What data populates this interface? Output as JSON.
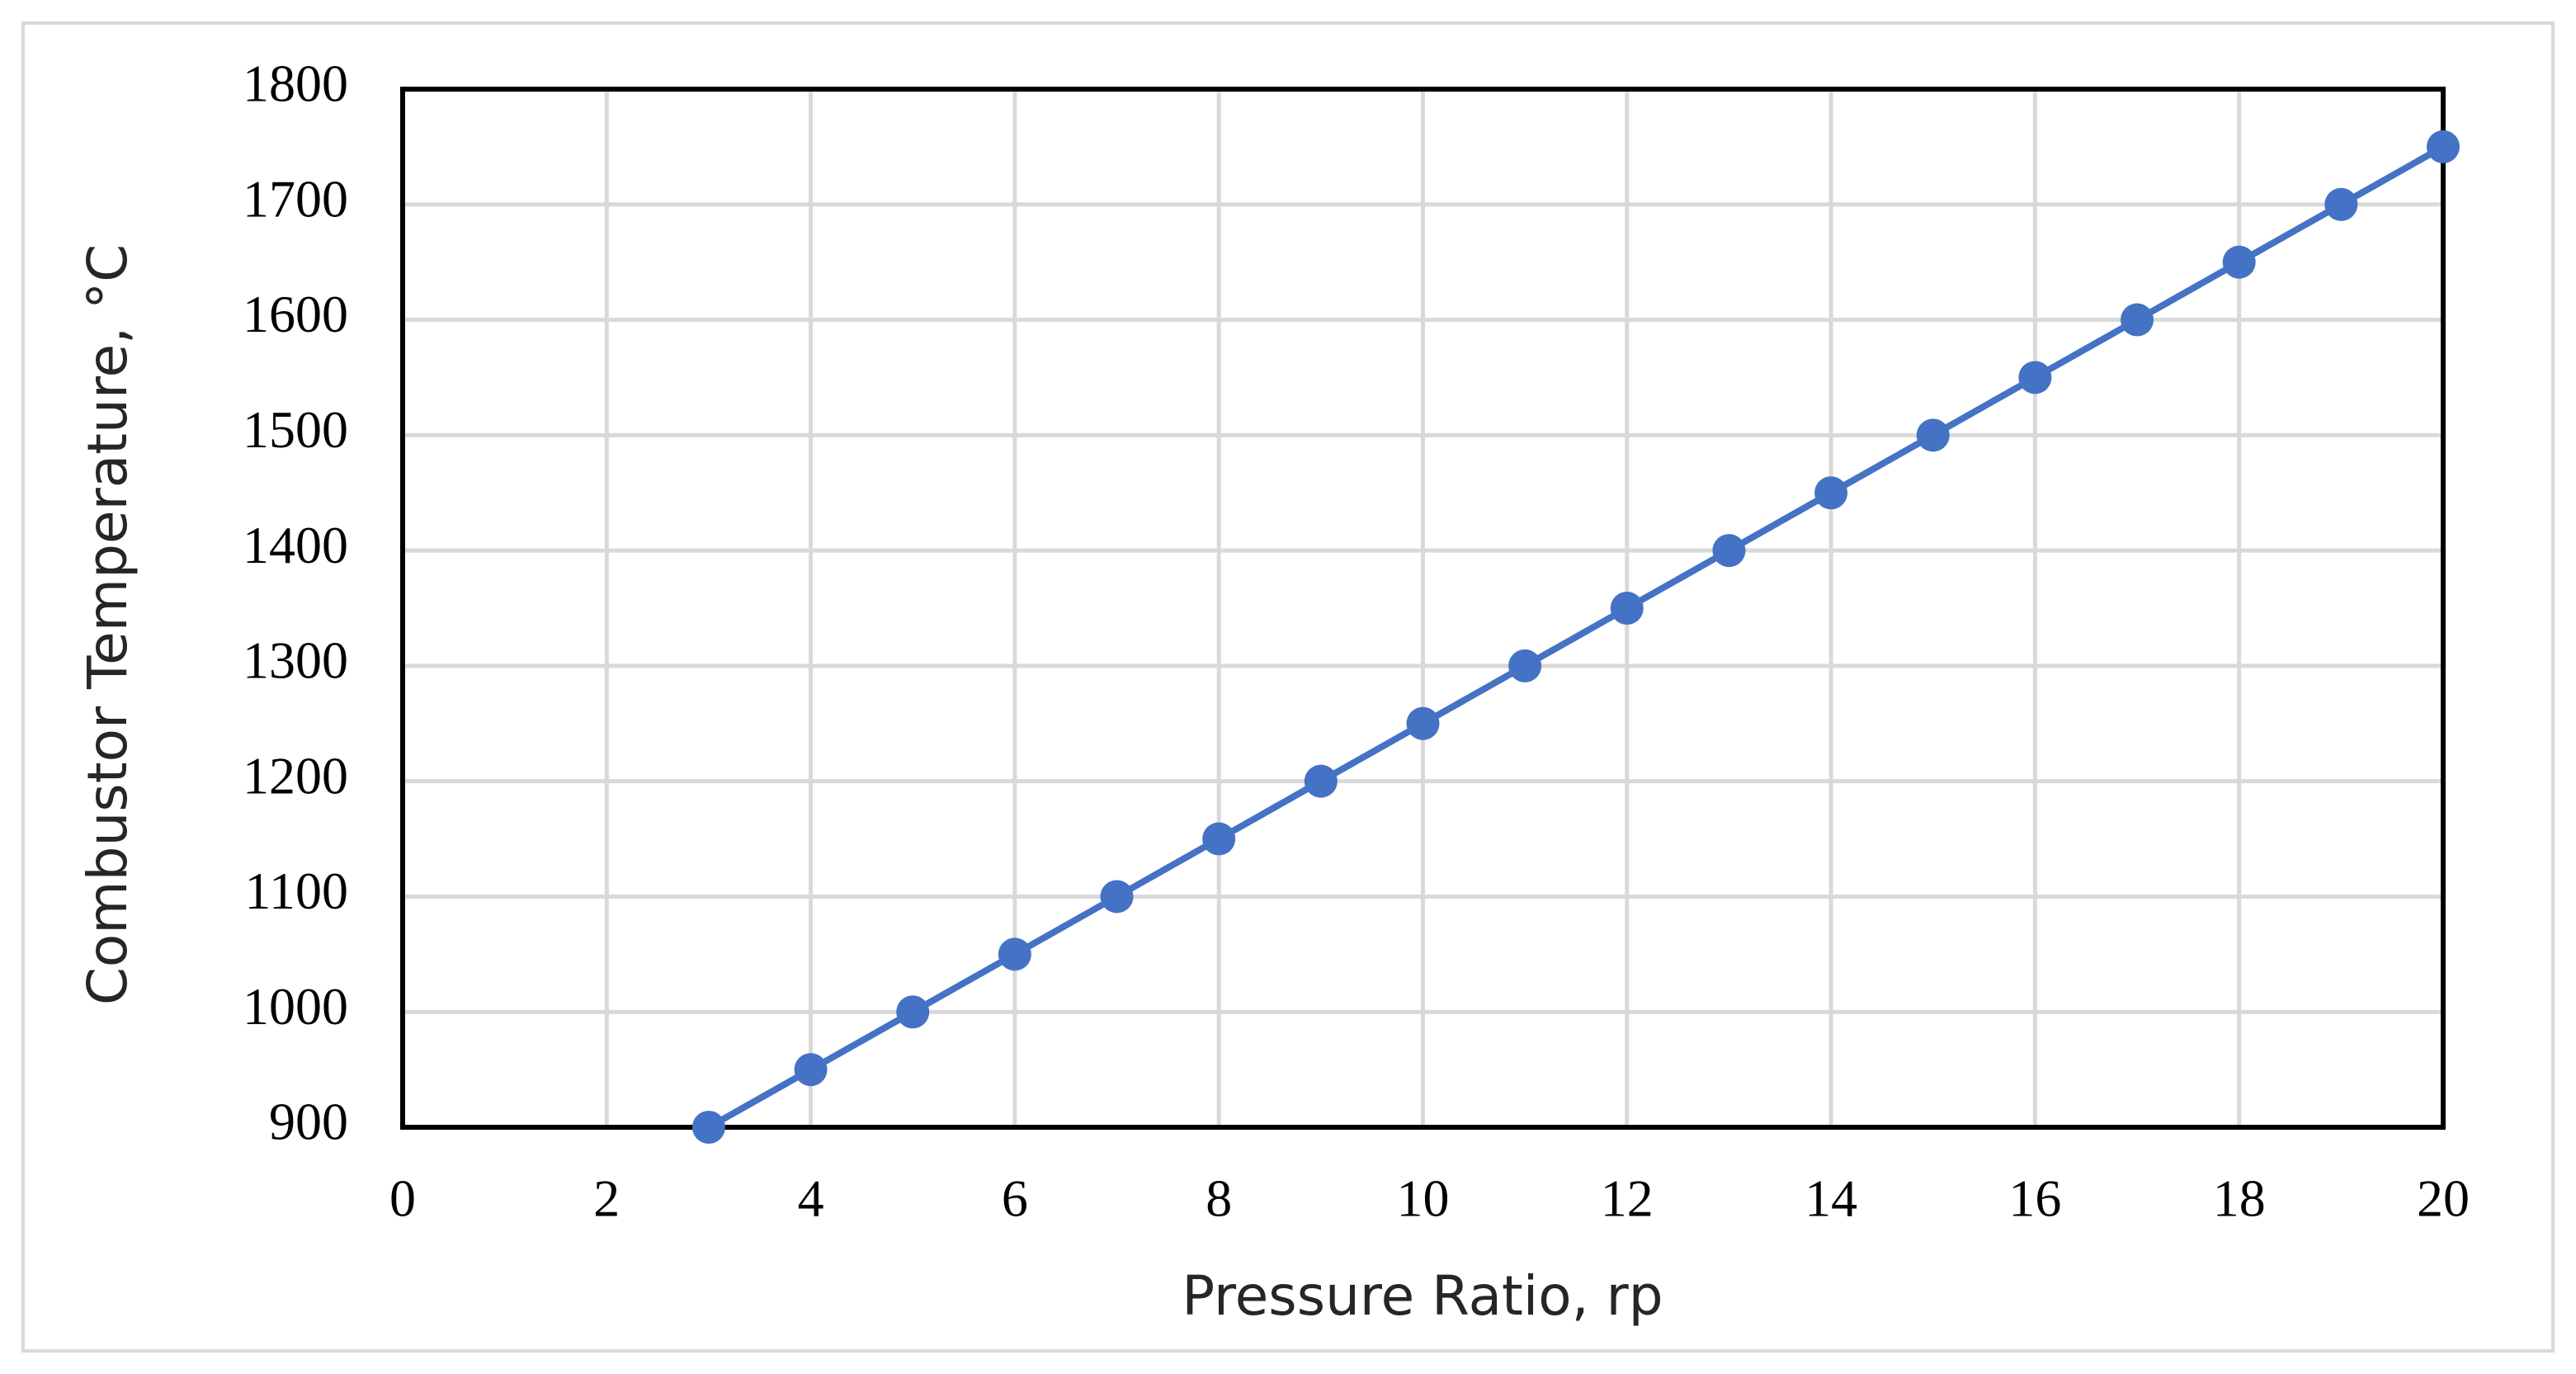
{
  "chart_data": {
    "type": "line",
    "x_label": "Pressure Ratio, rp",
    "y_label": "Combustor Temperature, °C",
    "x": [
      3,
      4,
      5,
      6,
      7,
      8,
      9,
      10,
      11,
      12,
      13,
      14,
      15,
      16,
      17,
      18,
      19,
      20
    ],
    "values": [
      900,
      950,
      1000,
      1050,
      1100,
      1150,
      1200,
      1250,
      1300,
      1350,
      1400,
      1450,
      1500,
      1550,
      1600,
      1650,
      1700,
      1750
    ],
    "color": "#4472c4",
    "xlim": [
      0,
      20
    ],
    "xticks": [
      0,
      2,
      4,
      6,
      8,
      10,
      12,
      14,
      16,
      18,
      20
    ],
    "ylim": [
      900,
      1800
    ],
    "yticks": [
      900,
      1000,
      1100,
      1200,
      1300,
      1400,
      1500,
      1600,
      1700,
      1800
    ],
    "grid": true
  }
}
